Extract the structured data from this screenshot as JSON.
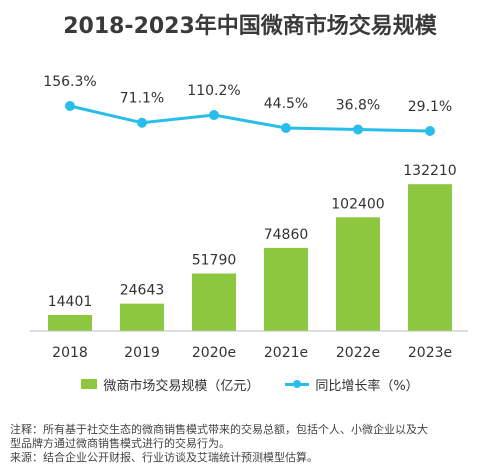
{
  "chart_data": {
    "type": "bar",
    "title": "2018-2023年中国微商市场交易规模",
    "categories": [
      "2018",
      "2019",
      "2020e",
      "2021e",
      "2022e",
      "2023e"
    ],
    "series": [
      {
        "name": "微商市场交易规模（亿元）",
        "type": "bar",
        "values": [
          14401,
          24643,
          51790,
          74860,
          102400,
          132210
        ],
        "color": "#8dc63f"
      },
      {
        "name": "同比增长率（%）",
        "type": "line",
        "values": [
          156.3,
          71.1,
          110.2,
          44.5,
          36.8,
          29.1
        ],
        "labels": [
          "156.3%",
          "71.1%",
          "110.2%",
          "44.5%",
          "36.8%",
          "29.1%"
        ],
        "color": "#29bdea"
      }
    ],
    "bar_labels": [
      "14401",
      "24643",
      "51790",
      "74860",
      "102400",
      "132210"
    ],
    "ylim": [
      0,
      145000
    ],
    "grid": false,
    "legend": "bottom"
  },
  "notes": {
    "line1": "注释：所有基于社交生态的微商销售模式带来的交易总额，包括个人、小微企业以及大",
    "line2": "型品牌方通过微商销售模式进行的交易行为。",
    "line3": "来源：结合企业公开财报、行业访谈及艾瑞统计预测模型估算。"
  }
}
